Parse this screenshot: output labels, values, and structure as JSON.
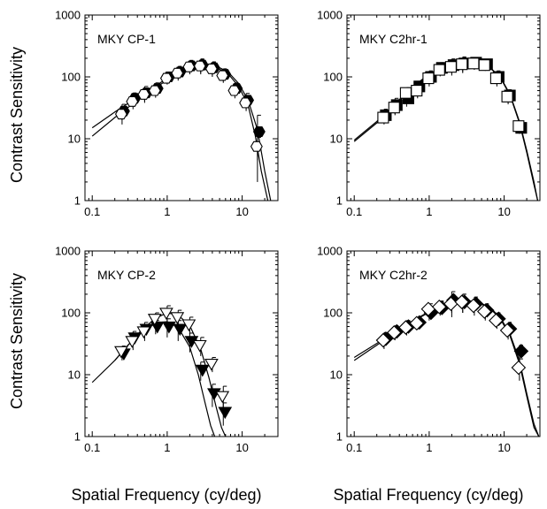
{
  "figure": {
    "ylabel": "Contrast Sensitivity",
    "xlabel": "Spatial Frequency (cy/deg)"
  },
  "chart_data": [
    {
      "type": "scatter",
      "title": "MKY CP-1",
      "xscale": "log",
      "yscale": "log",
      "xlim": [
        0.08,
        30
      ],
      "ylim": [
        1,
        1000
      ],
      "xticks": [
        "0.1",
        "1",
        "10"
      ],
      "yticks": [
        "1",
        "10",
        "100",
        "1000"
      ],
      "marker": "hexagon",
      "series": [
        {
          "fill": "#000000",
          "x": [
            0.25,
            0.35,
            0.5,
            0.7,
            1.0,
            1.4,
            2.0,
            2.8,
            4.0,
            5.6,
            8.0,
            11.3,
            16.0
          ],
          "y": [
            28,
            45,
            55,
            65,
            100,
            120,
            150,
            155,
            140,
            110,
            65,
            42,
            13
          ],
          "err": [
            8,
            10,
            15,
            15,
            20,
            28,
            35,
            40,
            35,
            25,
            15,
            12,
            11
          ]
        },
        {
          "fill": "#ffffff",
          "x": [
            0.25,
            0.35,
            0.5,
            0.7,
            1.0,
            1.4,
            2.0,
            2.8,
            4.0,
            5.6,
            8.0,
            11.3,
            16.0
          ],
          "y": [
            25,
            40,
            52,
            60,
            95,
            115,
            145,
            150,
            135,
            105,
            60,
            38,
            7.5
          ],
          "err": [
            8,
            10,
            14,
            14,
            20,
            28,
            35,
            40,
            35,
            25,
            15,
            10,
            3
          ]
        }
      ],
      "curves": [
        {
          "x": [
            0.1,
            0.2,
            0.35,
            0.6,
            1.0,
            2.0,
            3.0,
            4.5,
            6.5,
            9.0,
            12.0,
            16.0,
            20.0,
            24.0
          ],
          "y": [
            15,
            27,
            42,
            63,
            95,
            145,
            158,
            150,
            120,
            78,
            42,
            14,
            3,
            1
          ]
        },
        {
          "x": [
            0.1,
            0.2,
            0.35,
            0.6,
            1.0,
            2.0,
            3.0,
            4.5,
            6.5,
            9.0,
            12.0,
            15.0,
            18.0,
            22.0
          ],
          "y": [
            11,
            22,
            37,
            58,
            90,
            140,
            152,
            142,
            112,
            70,
            35,
            11,
            3,
            1
          ]
        }
      ]
    },
    {
      "type": "scatter",
      "title": "MKY C2hr-1",
      "xscale": "log",
      "yscale": "log",
      "xlim": [
        0.08,
        30
      ],
      "ylim": [
        1,
        1000
      ],
      "xticks": [
        "0.1",
        "1",
        "10"
      ],
      "yticks": [
        "1",
        "10",
        "100",
        "1000"
      ],
      "marker": "square",
      "series": [
        {
          "fill": "#000000",
          "x": [
            0.25,
            0.35,
            0.5,
            0.7,
            1.0,
            1.4,
            2.0,
            2.8,
            4.0,
            5.6,
            8.0,
            11.3,
            16.0
          ],
          "y": [
            24,
            35,
            45,
            70,
            100,
            140,
            155,
            165,
            170,
            160,
            100,
            50,
            15
          ],
          "err": [
            6,
            10,
            12,
            15,
            25,
            30,
            40,
            45,
            35,
            30,
            25,
            12,
            3
          ]
        },
        {
          "fill": "#ffffff",
          "x": [
            0.25,
            0.35,
            0.5,
            0.7,
            1.0,
            1.4,
            2.0,
            2.8,
            4.0,
            5.6,
            8.0,
            11.3,
            16.0
          ],
          "y": [
            22,
            32,
            55,
            60,
            95,
            130,
            145,
            160,
            165,
            155,
            95,
            48,
            16
          ],
          "err": [
            5,
            8,
            12,
            15,
            25,
            28,
            40,
            45,
            35,
            30,
            25,
            12,
            3
          ]
        }
      ],
      "curves": [
        {
          "x": [
            0.1,
            0.2,
            0.35,
            0.6,
            1.0,
            2.0,
            3.0,
            4.5,
            6.5,
            9.0,
            12.0,
            16.0,
            20.0,
            25.0,
            28.0
          ],
          "y": [
            9,
            18,
            35,
            65,
            110,
            170,
            180,
            168,
            140,
            95,
            50,
            18,
            6,
            1.8,
            1
          ]
        },
        {
          "x": [
            0.1,
            0.2,
            0.35,
            0.6,
            1.0,
            2.0,
            3.0,
            4.5,
            6.5,
            9.0,
            12.0,
            16.0,
            20.0,
            25.0,
            28.0
          ],
          "y": [
            9.5,
            19,
            37,
            68,
            112,
            172,
            182,
            170,
            142,
            97,
            52,
            19,
            6.5,
            2,
            1
          ]
        }
      ]
    },
    {
      "type": "scatter",
      "title": "MKY CP-2",
      "xscale": "log",
      "yscale": "log",
      "xlim": [
        0.08,
        30
      ],
      "ylim": [
        1,
        1000
      ],
      "xticks": [
        "0.1",
        "1",
        "10"
      ],
      "yticks": [
        "1",
        "10",
        "100",
        "1000"
      ],
      "marker": "triangle-down",
      "series": [
        {
          "fill": "#000000",
          "x": [
            0.25,
            0.35,
            0.5,
            0.7,
            1.0,
            1.4,
            2.0,
            2.8,
            4.0,
            5.6
          ],
          "y": [
            22,
            40,
            55,
            60,
            60,
            55,
            35,
            12,
            5,
            2.5
          ],
          "err": [
            5,
            10,
            15,
            15,
            20,
            20,
            12,
            4,
            2,
            1
          ]
        },
        {
          "fill": "#ffffff",
          "x": [
            0.25,
            0.35,
            0.5,
            0.7,
            1.0,
            1.4,
            2.0,
            2.8,
            4.0,
            5.6
          ],
          "y": [
            24,
            35,
            50,
            80,
            100,
            85,
            65,
            30,
            15,
            4.5
          ],
          "err": [
            5,
            10,
            15,
            20,
            30,
            25,
            20,
            10,
            4,
            2
          ]
        }
      ],
      "curves": [
        {
          "x": [
            0.1,
            0.2,
            0.3,
            0.45,
            0.7,
            1.0,
            1.4,
            2.0,
            2.6,
            3.2,
            3.8,
            4.3
          ],
          "y": [
            7.5,
            17,
            30,
            48,
            68,
            72,
            58,
            28,
            10,
            3.5,
            1.5,
            1
          ]
        },
        {
          "x": [
            0.2,
            0.3,
            0.45,
            0.7,
            1.0,
            1.4,
            2.0,
            2.8,
            3.6,
            4.5,
            5.3,
            6.0
          ],
          "y": [
            17,
            30,
            52,
            82,
            100,
            92,
            62,
            26,
            9,
            3,
            1.4,
            1
          ]
        }
      ]
    },
    {
      "type": "scatter",
      "title": "MKY C2hr-2",
      "xscale": "log",
      "yscale": "log",
      "xlim": [
        0.08,
        30
      ],
      "ylim": [
        1,
        1000
      ],
      "xticks": [
        "0.1",
        "1",
        "10"
      ],
      "yticks": [
        "1",
        "10",
        "100",
        "1000"
      ],
      "marker": "diamond",
      "series": [
        {
          "fill": "#000000",
          "x": [
            0.25,
            0.35,
            0.5,
            0.7,
            1.0,
            1.4,
            2.0,
            2.8,
            4.0,
            5.6,
            8.0,
            11.3,
            16.0
          ],
          "y": [
            38,
            50,
            60,
            70,
            100,
            120,
            160,
            150,
            140,
            110,
            80,
            55,
            24
          ],
          "err": [
            10,
            12,
            15,
            15,
            25,
            30,
            60,
            50,
            40,
            30,
            20,
            15,
            6
          ]
        },
        {
          "fill": "#ffffff",
          "x": [
            0.25,
            0.35,
            0.5,
            0.7,
            1.0,
            1.4,
            2.0,
            2.8,
            4.0,
            5.6,
            8.0,
            11.3,
            16.0
          ],
          "y": [
            36,
            48,
            58,
            68,
            115,
            125,
            140,
            150,
            130,
            105,
            75,
            52,
            13
          ],
          "err": [
            10,
            12,
            15,
            15,
            25,
            30,
            55,
            50,
            40,
            30,
            20,
            15,
            5
          ]
        }
      ],
      "curves": [
        {
          "x": [
            0.1,
            0.2,
            0.35,
            0.6,
            1.0,
            2.0,
            3.0,
            4.5,
            6.5,
            9.0,
            12.0,
            16.0,
            20.0,
            25.0,
            29.0
          ],
          "y": [
            19,
            32,
            50,
            74,
            105,
            148,
            160,
            150,
            122,
            82,
            45,
            17,
            5,
            1.6,
            1
          ]
        },
        {
          "x": [
            0.1,
            0.2,
            0.35,
            0.6,
            1.0,
            2.0,
            3.0,
            4.5,
            6.5,
            9.0,
            12.0,
            16.0,
            20.0,
            25.0,
            29.0
          ],
          "y": [
            17,
            30,
            48,
            72,
            102,
            145,
            157,
            147,
            118,
            78,
            42,
            15,
            4.5,
            1.4,
            1
          ]
        }
      ]
    }
  ]
}
